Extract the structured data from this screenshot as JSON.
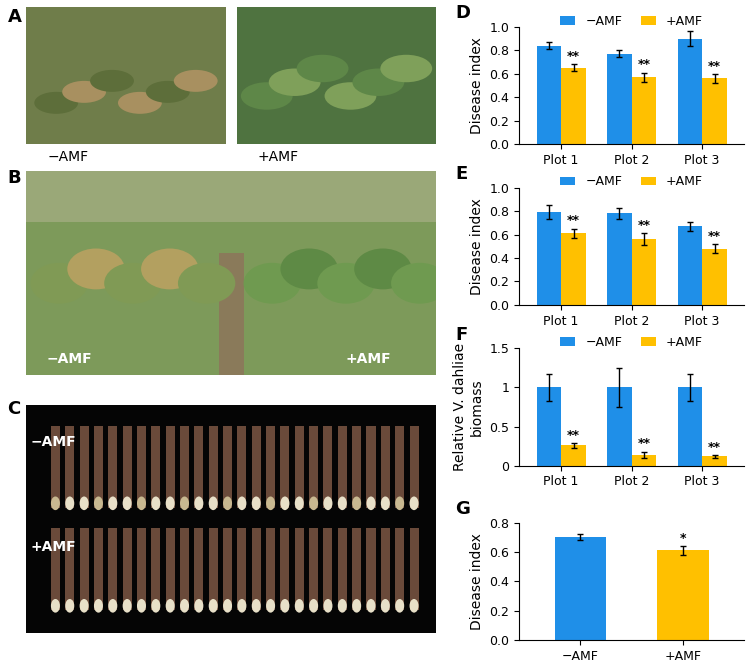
{
  "photo_panels": [
    {
      "panel_label": "A",
      "labels": [
        "−AMF",
        "+AMF"
      ]
    },
    {
      "panel_label": "B",
      "labels": [
        "−AMF",
        "+AMF"
      ]
    },
    {
      "panel_label": "C",
      "labels": [
        "−AMF",
        "+AMF"
      ]
    }
  ],
  "chart_data": [
    {
      "type": "bar",
      "panel_label": "D",
      "categories": [
        "Plot 1",
        "Plot 2",
        "Plot 3"
      ],
      "y_label": "Disease index",
      "ylim": [
        0,
        1.0
      ],
      "yticks": [
        0.0,
        0.2,
        0.4,
        0.6,
        0.8,
        1.0
      ],
      "legend": "upper center",
      "series": [
        {
          "name": "−AMF",
          "color": "#1f8fe8",
          "values": [
            0.84,
            0.77,
            0.9
          ],
          "errors": [
            0.03,
            0.03,
            0.06
          ]
        },
        {
          "name": "+AMF",
          "color": "#ffc000",
          "values": [
            0.65,
            0.57,
            0.56
          ],
          "errors": [
            0.03,
            0.04,
            0.04
          ],
          "annotations": [
            "**",
            "**",
            "**"
          ]
        }
      ]
    },
    {
      "type": "bar",
      "panel_label": "E",
      "categories": [
        "Plot 1",
        "Plot 2",
        "Plot 3"
      ],
      "y_label": "Disease index",
      "ylim": [
        0,
        1.0
      ],
      "yticks": [
        0.0,
        0.2,
        0.4,
        0.6,
        0.8,
        1.0
      ],
      "legend": "upper center",
      "series": [
        {
          "name": "−AMF",
          "color": "#1f8fe8",
          "values": [
            0.79,
            0.78,
            0.67
          ],
          "errors": [
            0.06,
            0.05,
            0.04
          ]
        },
        {
          "name": "+AMF",
          "color": "#ffc000",
          "values": [
            0.61,
            0.56,
            0.48
          ],
          "errors": [
            0.04,
            0.05,
            0.04
          ],
          "annotations": [
            "**",
            "**",
            "**"
          ]
        }
      ]
    },
    {
      "type": "bar",
      "panel_label": "F",
      "categories": [
        "Plot 1",
        "Plot 2",
        "Plot 3"
      ],
      "y_label": "Relative V. dahliae\nbiomass",
      "ylim": [
        0,
        1.5
      ],
      "yticks": [
        0,
        0.5,
        1,
        1.5
      ],
      "legend": "upper center",
      "series": [
        {
          "name": "−AMF",
          "color": "#1f8fe8",
          "values": [
            1,
            1,
            1
          ],
          "errors": [
            0.17,
            0.25,
            0.17
          ]
        },
        {
          "name": "+AMF",
          "color": "#ffc000",
          "values": [
            0.26,
            0.14,
            0.12
          ],
          "errors": [
            0.03,
            0.04,
            0.02
          ],
          "annotations": [
            "**",
            "**",
            "**"
          ]
        }
      ]
    },
    {
      "type": "bar",
      "panel_label": "G",
      "categories": [
        "−AMF",
        "+AMF"
      ],
      "y_label": "Disease index",
      "ylim": [
        0,
        0.8
      ],
      "yticks": [
        0.0,
        0.2,
        0.4,
        0.6,
        0.8
      ],
      "values": [
        0.7,
        0.61
      ],
      "errors": [
        0.02,
        0.03
      ],
      "colors": [
        "#1f8fe8",
        "#ffc000"
      ],
      "annotations": [
        null,
        "*"
      ]
    }
  ]
}
